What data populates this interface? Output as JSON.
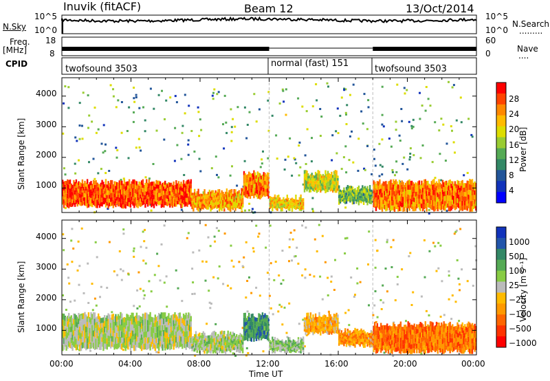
{
  "header": {
    "station": "Inuvik (fitACF)",
    "beam": "Beam 12",
    "date": "13/Oct/2014"
  },
  "side_labels": {
    "nsky": "N.Sky",
    "freq_line1": "Freq.",
    "freq_line2": "[MHz]",
    "cpid": "CPID",
    "nsearch": "N.Search",
    "nsearch_dots": ".........",
    "nave": "Nave",
    "nave_dots": "...."
  },
  "top_panel_ticks": {
    "left_top": "10^5",
    "left_bottom": "10^0",
    "right_top": "10^5",
    "right_bottom": "10^0"
  },
  "freq_panel_ticks": {
    "left_top": "18",
    "left_bottom": "8",
    "right_top": "60",
    "right_bottom": "0"
  },
  "cpid_segments": [
    {
      "label": "twofsound 3503",
      "start_hour": 0
    },
    {
      "label": "normal (fast) 151",
      "start_hour": 12
    },
    {
      "label": "twofsound 3503",
      "start_hour": 18
    }
  ],
  "chart_data": [
    {
      "type": "heatmap",
      "name": "power",
      "xlabel": "",
      "ylabel": "Slant Range [km]",
      "xlim": [
        0,
        24
      ],
      "ylim": [
        200,
        4600
      ],
      "yticks": [
        "1000",
        "2000",
        "3000",
        "4000"
      ],
      "colorbar_label": "Power [dB]",
      "colorbar_ticks": [
        "28",
        "24",
        "20",
        "16",
        "12",
        "8",
        "4"
      ],
      "colorbar_colors": [
        "#ff0000",
        "#ff4400",
        "#ff8800",
        "#ffbb00",
        "#dddd00",
        "#99cc33",
        "#55aa55",
        "#338866",
        "#225599",
        "#1133bb",
        "#0000ff"
      ],
      "bands": [
        {
          "h0": 0,
          "h1": 7.5,
          "r0": 400,
          "r1": 1200,
          "v": 26
        },
        {
          "h0": 7.5,
          "h1": 10.5,
          "r0": 300,
          "r1": 900,
          "v": 22
        },
        {
          "h0": 10.5,
          "h1": 12,
          "r0": 700,
          "r1": 1500,
          "v": 24
        },
        {
          "h0": 12,
          "h1": 14,
          "r0": 300,
          "r1": 700,
          "v": 20
        },
        {
          "h0": 14,
          "h1": 16,
          "r0": 900,
          "r1": 1500,
          "v": 18
        },
        {
          "h0": 16,
          "h1": 18,
          "r0": 500,
          "r1": 1000,
          "v": 14
        },
        {
          "h0": 18,
          "h1": 24,
          "r0": 300,
          "r1": 1200,
          "v": 24
        }
      ]
    },
    {
      "type": "heatmap",
      "name": "velocity",
      "xlabel": "Time UT",
      "ylabel": "Slant Range [km]",
      "xlim": [
        0,
        24
      ],
      "ylim": [
        200,
        4600
      ],
      "xticks": [
        "00:00",
        "04:00",
        "08:00",
        "12:00",
        "16:00",
        "20:00",
        "00:00"
      ],
      "yticks": [
        "1000",
        "2000",
        "3000",
        "4000"
      ],
      "colorbar_label": "Velocity [m s⁻¹]",
      "colorbar_ticks": [
        "1000",
        "500",
        "100",
        "25",
        "−25",
        "−100",
        "−500",
        "−1000"
      ],
      "colorbar_colors": [
        "#1133bb",
        "#2255aa",
        "#338866",
        "#55aa55",
        "#88cc44",
        "#bbbbbb",
        "#ffbb00",
        "#ff9900",
        "#ff6600",
        "#ff3300",
        "#ff0000"
      ],
      "bands": [
        {
          "h0": 0,
          "h1": 7.5,
          "r0": 400,
          "r1": 1500,
          "v": 40
        },
        {
          "h0": 7.5,
          "h1": 10.5,
          "r0": 300,
          "r1": 900,
          "v": 60
        },
        {
          "h0": 10.5,
          "h1": 12,
          "r0": 700,
          "r1": 1500,
          "v": 300
        },
        {
          "h0": 12,
          "h1": 14,
          "r0": 300,
          "r1": 700,
          "v": 100
        },
        {
          "h0": 14,
          "h1": 16,
          "r0": 900,
          "r1": 1500,
          "v": -150
        },
        {
          "h0": 16,
          "h1": 18,
          "r0": 500,
          "r1": 1000,
          "v": -200
        },
        {
          "h0": 18,
          "h1": 24,
          "r0": 300,
          "r1": 1200,
          "v": -300
        }
      ]
    }
  ]
}
